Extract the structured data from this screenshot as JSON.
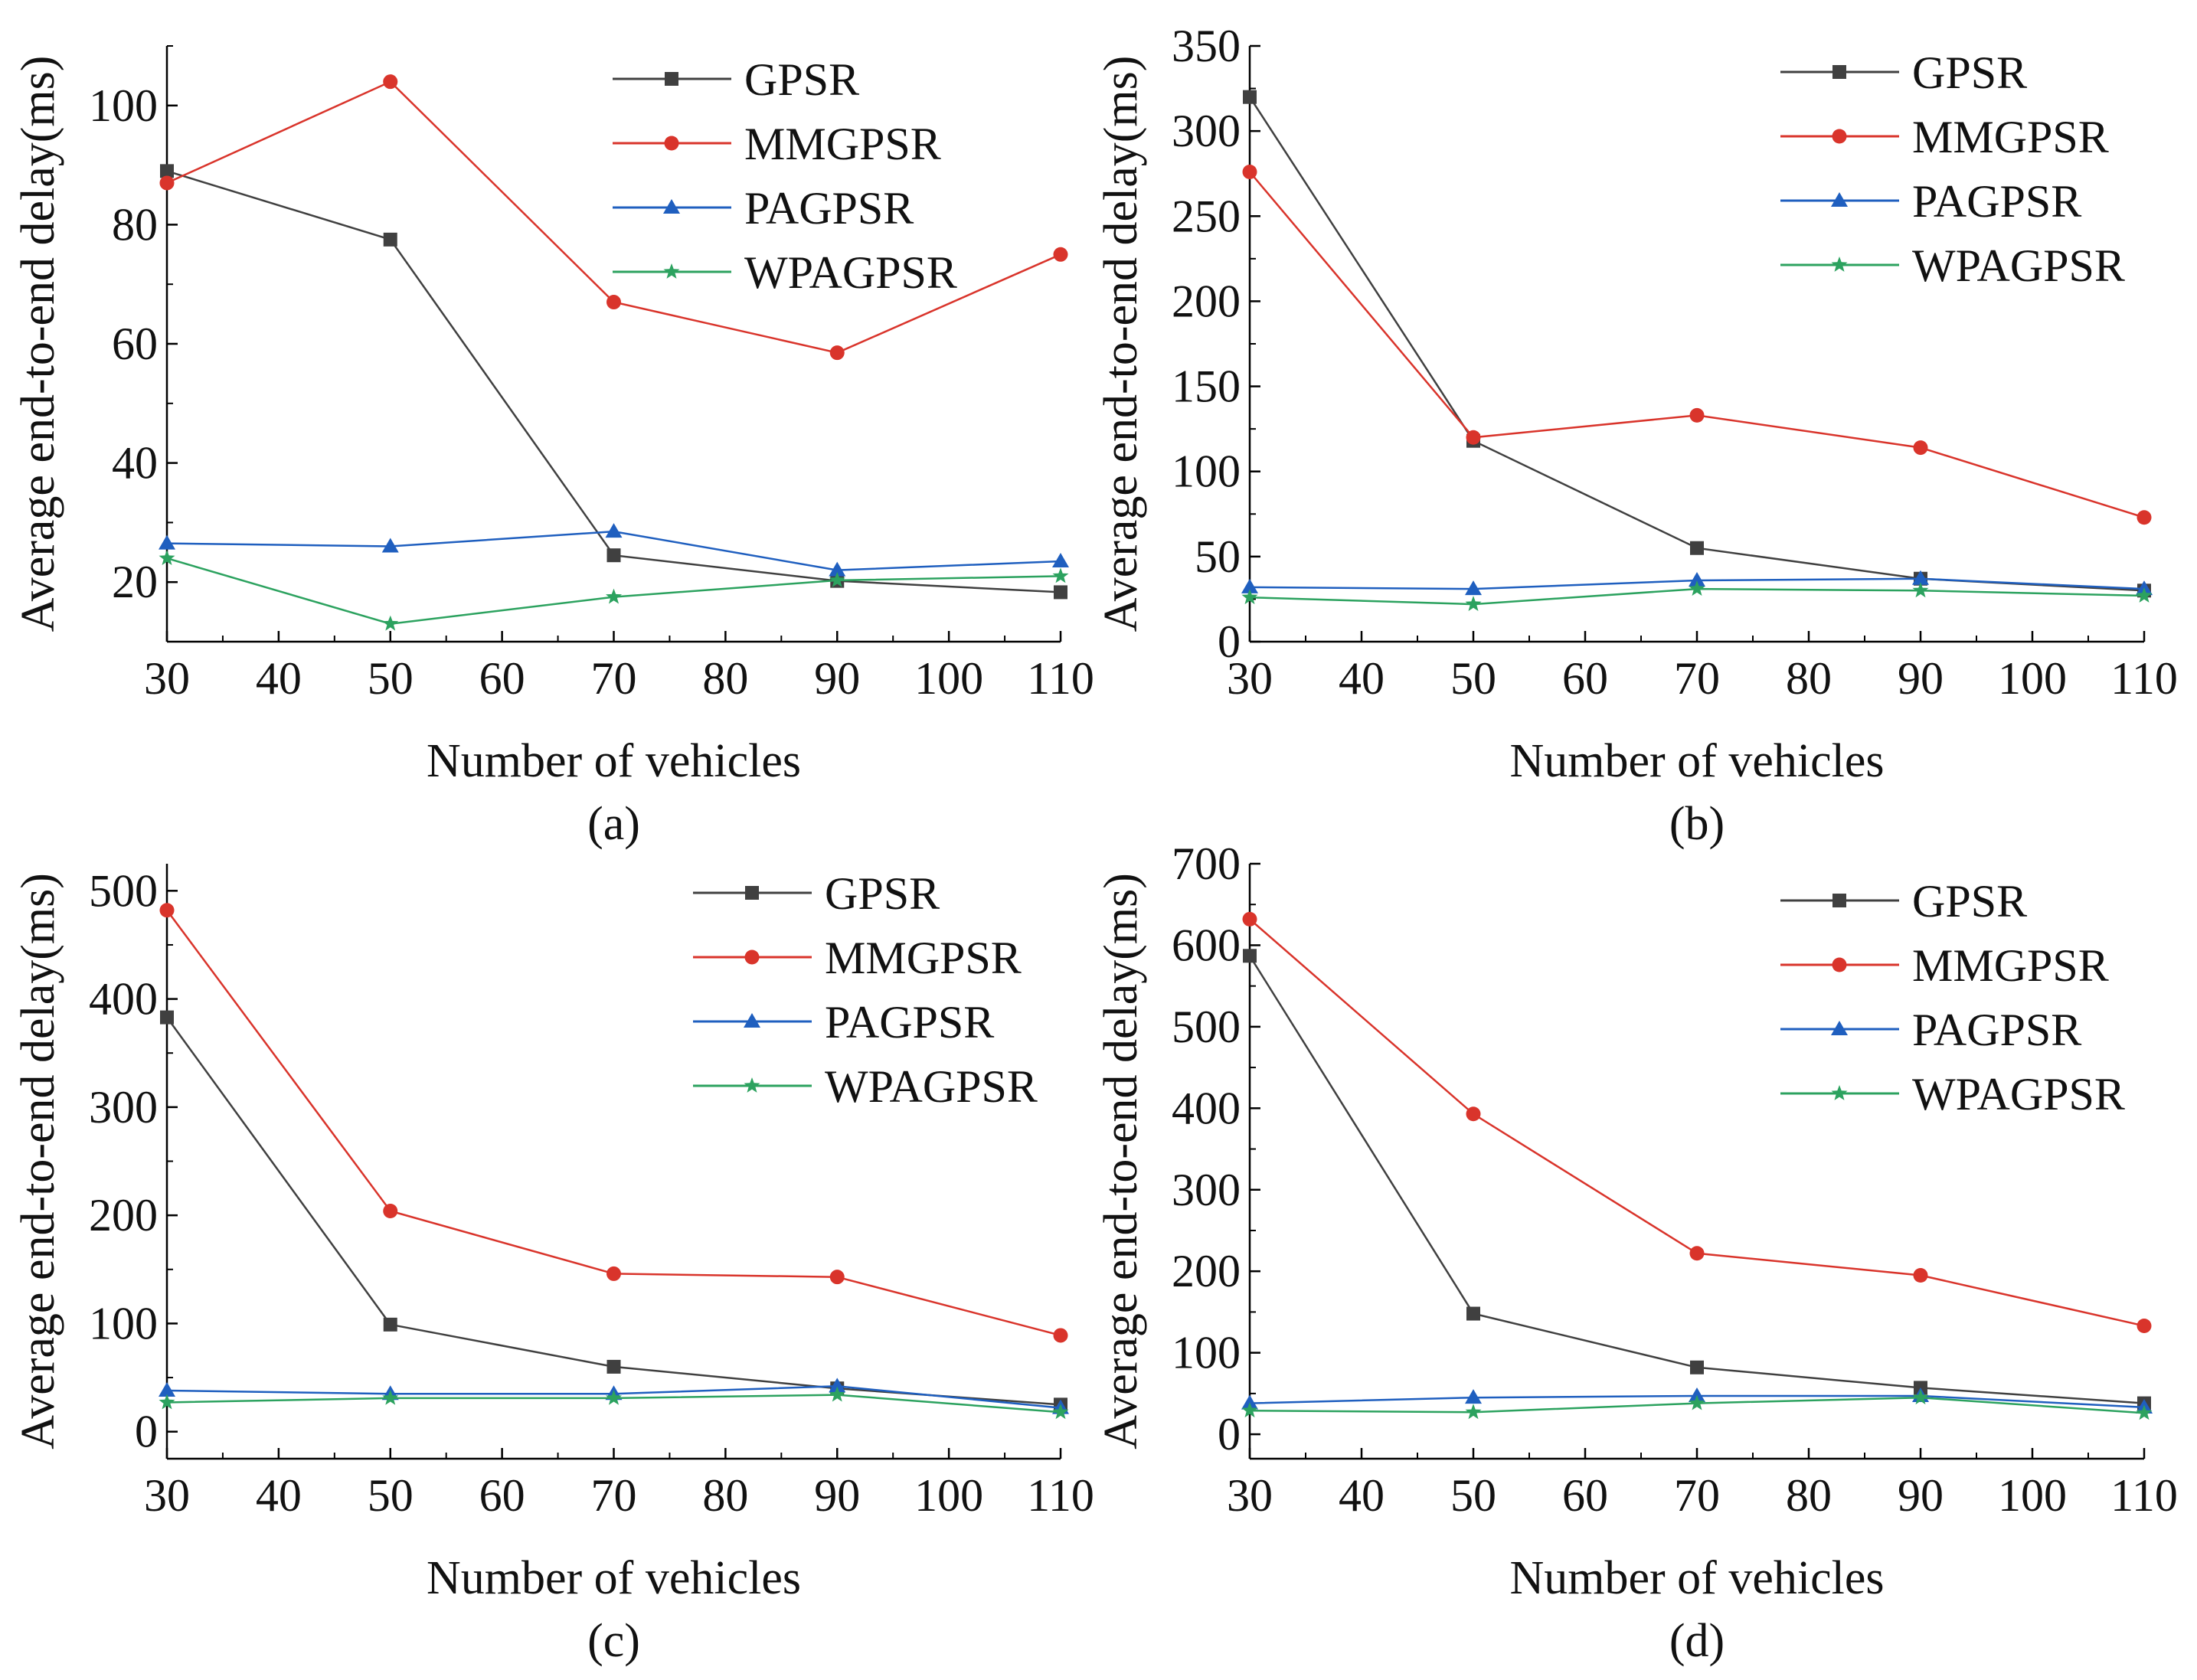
{
  "figure": {
    "x_label": "Number of vehicles",
    "y_label": "Average end-to-end delay(ms)"
  },
  "series_styles": [
    {
      "name": "GPSR",
      "color": "#404040",
      "marker": "square"
    },
    {
      "name": "MMGPSR",
      "color": "#d9342b",
      "marker": "circle"
    },
    {
      "name": "PAGPSR",
      "color": "#1f5fbf",
      "marker": "triangle"
    },
    {
      "name": "WPAGPSR",
      "color": "#2ca25f",
      "marker": "star"
    }
  ],
  "chart_data": [
    {
      "type": "line",
      "panel_label": "(a)",
      "title": "",
      "xlabel": "Number of vehicles",
      "ylabel": "Average end-to-end delay(ms)",
      "x": [
        30,
        50,
        70,
        90,
        110
      ],
      "xlim": [
        30,
        110
      ],
      "xticks": [
        30,
        40,
        50,
        60,
        70,
        80,
        90,
        100,
        110
      ],
      "ylim": [
        10,
        110
      ],
      "yticks": [
        20,
        40,
        60,
        80,
        100
      ],
      "legend": "top-right",
      "grid": false,
      "series": [
        {
          "name": "GPSR",
          "values": [
            89,
            77.5,
            24.5,
            20.2,
            18.3
          ]
        },
        {
          "name": "MMGPSR",
          "values": [
            87,
            104,
            67,
            58.5,
            75
          ]
        },
        {
          "name": "PAGPSR",
          "values": [
            26.5,
            26,
            28.5,
            22,
            23.5
          ]
        },
        {
          "name": "WPAGPSR",
          "values": [
            24,
            13,
            17.5,
            20.3,
            21
          ]
        }
      ]
    },
    {
      "type": "line",
      "panel_label": "(b)",
      "title": "",
      "xlabel": "Number of vehicles",
      "ylabel": "Average end-to-end delay(ms)",
      "x": [
        30,
        50,
        70,
        90,
        110
      ],
      "xlim": [
        30,
        110
      ],
      "xticks": [
        30,
        40,
        50,
        60,
        70,
        80,
        90,
        100,
        110
      ],
      "ylim": [
        0,
        350
      ],
      "yticks": [
        0,
        50,
        100,
        150,
        200,
        250,
        300,
        350
      ],
      "legend": "top-right",
      "grid": false,
      "series": [
        {
          "name": "GPSR",
          "values": [
            320,
            118,
            55,
            37,
            30
          ]
        },
        {
          "name": "MMGPSR",
          "values": [
            276,
            120,
            133,
            114,
            73
          ]
        },
        {
          "name": "PAGPSR",
          "values": [
            32,
            31,
            36,
            37,
            31
          ]
        },
        {
          "name": "WPAGPSR",
          "values": [
            26,
            22,
            31,
            30,
            27
          ]
        }
      ]
    },
    {
      "type": "line",
      "panel_label": "(c)",
      "title": "",
      "xlabel": "Number of vehicles",
      "ylabel": "Average end-to-end delay(ms)",
      "x": [
        30,
        50,
        70,
        90,
        110
      ],
      "xlim": [
        30,
        110
      ],
      "xticks": [
        30,
        40,
        50,
        60,
        70,
        80,
        90,
        100,
        110
      ],
      "ylim": [
        -25,
        525
      ],
      "yticks": [
        0,
        100,
        200,
        300,
        400,
        500
      ],
      "legend": "top-right",
      "grid": false,
      "series": [
        {
          "name": "GPSR",
          "values": [
            383,
            99,
            60,
            40,
            25
          ]
        },
        {
          "name": "MMGPSR",
          "values": [
            482,
            204,
            146,
            143,
            89
          ]
        },
        {
          "name": "PAGPSR",
          "values": [
            38,
            35,
            35,
            42,
            22
          ]
        },
        {
          "name": "WPAGPSR",
          "values": [
            27,
            31,
            31,
            34,
            18
          ]
        }
      ]
    },
    {
      "type": "line",
      "panel_label": "(d)",
      "title": "",
      "xlabel": "Number of vehicles",
      "ylabel": "Average end-to-end delay(ms)",
      "x": [
        30,
        50,
        70,
        90,
        110
      ],
      "xlim": [
        30,
        110
      ],
      "xticks": [
        30,
        40,
        50,
        60,
        70,
        80,
        90,
        100,
        110
      ],
      "ylim": [
        -30,
        700
      ],
      "yticks": [
        0,
        100,
        200,
        300,
        400,
        500,
        600,
        700
      ],
      "legend": "top-right",
      "grid": false,
      "series": [
        {
          "name": "GPSR",
          "values": [
            587,
            148,
            82,
            57,
            38
          ]
        },
        {
          "name": "MMGPSR",
          "values": [
            632,
            393,
            222,
            195,
            133
          ]
        },
        {
          "name": "PAGPSR",
          "values": [
            38,
            45,
            47,
            47,
            33
          ]
        },
        {
          "name": "WPAGPSR",
          "values": [
            29,
            27,
            38,
            45,
            26
          ]
        }
      ]
    }
  ]
}
